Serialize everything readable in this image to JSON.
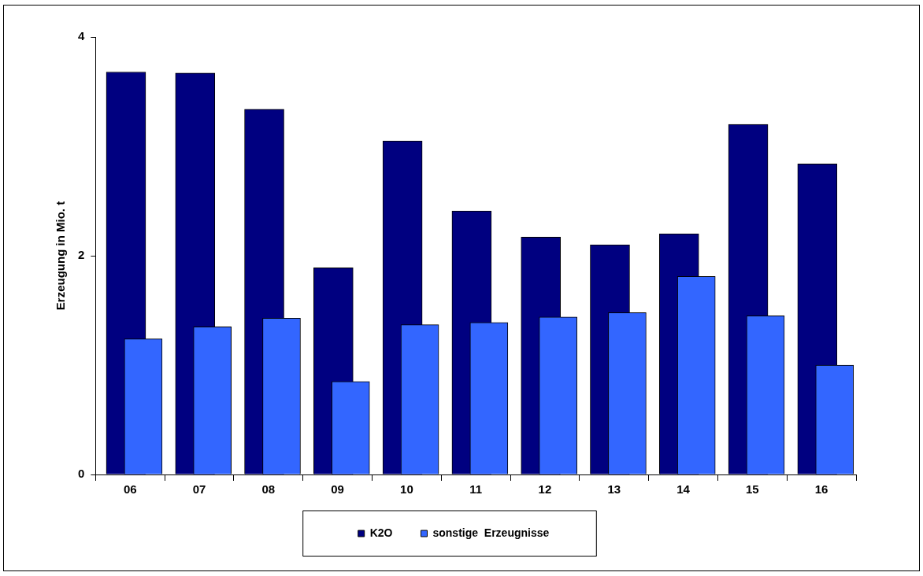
{
  "chart_data": {
    "type": "bar",
    "ylabel": "Erzeugung in Mio. t",
    "categories": [
      "06",
      "07",
      "08",
      "09",
      "10",
      "11",
      "12",
      "13",
      "14",
      "15",
      "16"
    ],
    "series": [
      {
        "name": "K2O",
        "color": "#000080",
        "values": [
          3.68,
          3.67,
          3.34,
          1.89,
          3.05,
          2.41,
          2.17,
          2.1,
          2.2,
          3.2,
          2.84
        ]
      },
      {
        "name": "sonstige  Erzeugnisse",
        "color": "#3366ff",
        "values": [
          1.24,
          1.35,
          1.43,
          0.85,
          1.37,
          1.39,
          1.44,
          1.48,
          1.81,
          1.45,
          1.0
        ]
      }
    ],
    "ylim": [
      0,
      4
    ],
    "yticks": [
      0,
      2,
      4
    ],
    "grid": false,
    "legend": "bottom"
  }
}
